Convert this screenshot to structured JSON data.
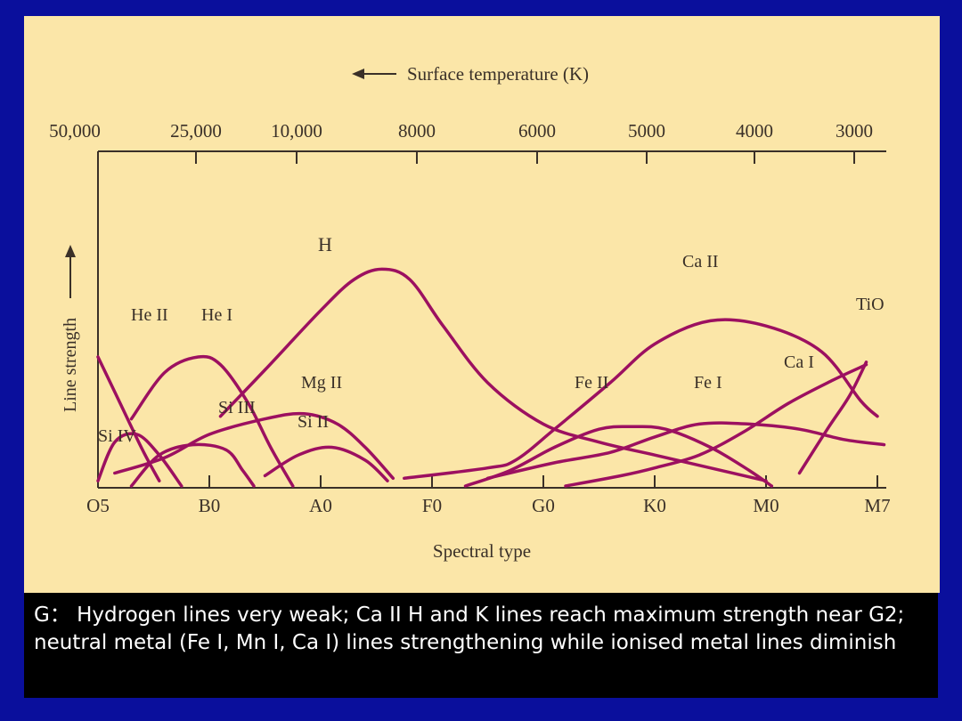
{
  "chart_data": {
    "type": "line",
    "title": "",
    "top_axis": {
      "label": "Surface temperature (K)",
      "arrow": "←",
      "ticks": [
        "50,000",
        "25,000",
        "10,000",
        "8000",
        "6000",
        "5000",
        "4000",
        "3000"
      ]
    },
    "xlabel": "Spectral type",
    "ylabel": "Line strength",
    "ylabel_arrow": "→",
    "categories": [
      "O5",
      "B0",
      "A0",
      "F0",
      "G0",
      "K0",
      "M0",
      "M7"
    ],
    "grid": false,
    "legend": "none",
    "series": [
      {
        "name": "H",
        "color": "#9c1060",
        "points": [
          [
            1.1,
            0.27
          ],
          [
            1.5,
            0.45
          ],
          [
            2,
            0.68
          ],
          [
            2.3,
            0.8
          ],
          [
            2.55,
            0.84
          ],
          [
            2.8,
            0.8
          ],
          [
            3.1,
            0.62
          ],
          [
            3.5,
            0.4
          ],
          [
            4,
            0.24
          ],
          [
            4.5,
            0.17
          ],
          [
            5,
            0.12
          ],
          [
            5.5,
            0.07
          ],
          [
            6,
            0.02
          ]
        ]
      },
      {
        "name": "He II",
        "color": "#9c1060",
        "points": [
          [
            0,
            0.5
          ],
          [
            0.2,
            0.32
          ],
          [
            0.4,
            0.14
          ],
          [
            0.55,
            0.02
          ]
        ]
      },
      {
        "name": "He I",
        "color": "#9c1060",
        "points": [
          [
            0.3,
            0.26
          ],
          [
            0.6,
            0.44
          ],
          [
            0.9,
            0.5
          ],
          [
            1.1,
            0.47
          ],
          [
            1.35,
            0.32
          ],
          [
            1.55,
            0.15
          ],
          [
            1.75,
            0.0
          ]
        ]
      },
      {
        "name": "Si IV",
        "color": "#9c1060",
        "points": [
          [
            0,
            0.02
          ],
          [
            0.15,
            0.17
          ],
          [
            0.35,
            0.2
          ],
          [
            0.55,
            0.12
          ],
          [
            0.75,
            0.0
          ]
        ]
      },
      {
        "name": "Si III",
        "color": "#9c1060",
        "points": [
          [
            0.3,
            0.0
          ],
          [
            0.55,
            0.12
          ],
          [
            0.85,
            0.16
          ],
          [
            1.15,
            0.14
          ],
          [
            1.3,
            0.06
          ],
          [
            1.4,
            0.0
          ]
        ]
      },
      {
        "name": "Mg II",
        "color": "#9c1060",
        "points": [
          [
            0.15,
            0.05
          ],
          [
            0.6,
            0.11
          ],
          [
            1,
            0.2
          ],
          [
            1.5,
            0.26
          ],
          [
            1.85,
            0.28
          ],
          [
            2.15,
            0.24
          ],
          [
            2.4,
            0.15
          ],
          [
            2.65,
            0.03
          ]
        ]
      },
      {
        "name": "Si II",
        "color": "#9c1060",
        "points": [
          [
            1.5,
            0.04
          ],
          [
            1.8,
            0.12
          ],
          [
            2.1,
            0.15
          ],
          [
            2.4,
            0.1
          ],
          [
            2.6,
            0.02
          ]
        ]
      },
      {
        "name": "Ca II",
        "color": "#9c1060",
        "points": [
          [
            2.75,
            0.03
          ],
          [
            3.5,
            0.07
          ],
          [
            3.75,
            0.1
          ],
          [
            4.1,
            0.22
          ],
          [
            4.6,
            0.4
          ],
          [
            5,
            0.55
          ],
          [
            5.5,
            0.64
          ],
          [
            6,
            0.62
          ],
          [
            6.5,
            0.52
          ],
          [
            6.85,
            0.33
          ],
          [
            7,
            0.27
          ]
        ]
      },
      {
        "name": "Fe II",
        "color": "#9c1060",
        "points": [
          [
            3.3,
            0.0
          ],
          [
            3.7,
            0.06
          ],
          [
            4.1,
            0.15
          ],
          [
            4.5,
            0.22
          ],
          [
            4.8,
            0.23
          ],
          [
            5.1,
            0.22
          ],
          [
            5.5,
            0.15
          ],
          [
            5.85,
            0.06
          ],
          [
            6.05,
            0.0
          ]
        ]
      },
      {
        "name": "Fe I",
        "color": "#9c1060",
        "points": [
          [
            3.5,
            0.03
          ],
          [
            4.1,
            0.09
          ],
          [
            4.6,
            0.13
          ],
          [
            5,
            0.19
          ],
          [
            5.4,
            0.24
          ],
          [
            5.85,
            0.24
          ],
          [
            6.3,
            0.22
          ],
          [
            6.7,
            0.18
          ],
          [
            7.06,
            0.16
          ]
        ]
      },
      {
        "name": "Ca I",
        "color": "#9c1060",
        "points": [
          [
            4.2,
            0.0
          ],
          [
            4.7,
            0.04
          ],
          [
            5,
            0.07
          ],
          [
            5.4,
            0.12
          ],
          [
            5.8,
            0.21
          ],
          [
            6.2,
            0.32
          ],
          [
            6.6,
            0.41
          ],
          [
            6.9,
            0.47
          ]
        ]
      },
      {
        "name": "TiO",
        "color": "#9c1060",
        "points": [
          [
            6.3,
            0.05
          ],
          [
            6.55,
            0.22
          ],
          [
            6.75,
            0.35
          ],
          [
            6.9,
            0.48
          ]
        ]
      }
    ]
  },
  "caption": "G： Hydrogen lines very weak; Ca II H and K lines reach maximum strength near G2; neutral metal (Fe I, Mn I, Ca I) lines strengthening while ionised metal lines diminish"
}
